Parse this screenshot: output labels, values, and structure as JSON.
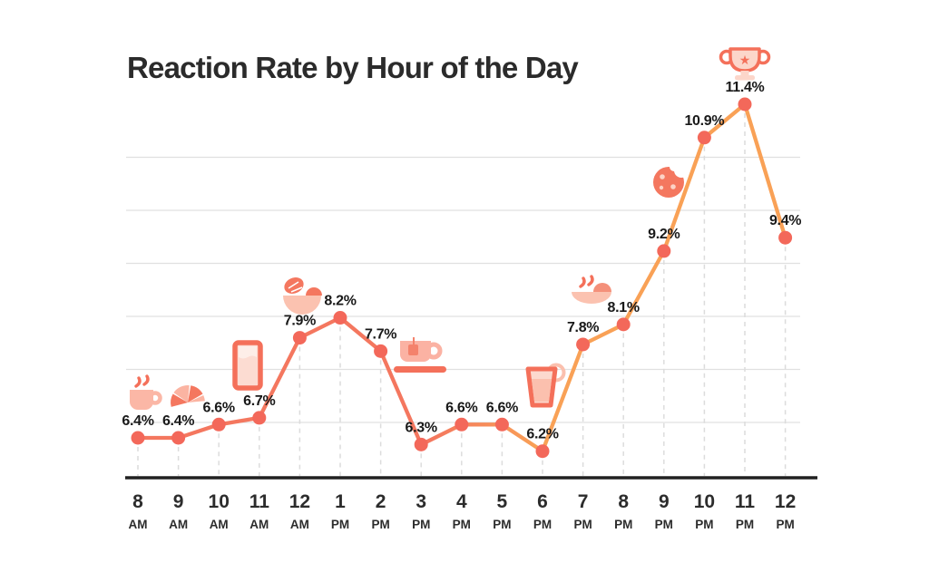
{
  "title": "Reaction Rate by Hour of the Day",
  "chart_data": {
    "type": "line",
    "title": "Reaction Rate by Hour of the Day",
    "categories": [
      "8 AM",
      "9 AM",
      "10 AM",
      "11 AM",
      "12 AM",
      "1 PM",
      "2 PM",
      "3 PM",
      "4 PM",
      "5 PM",
      "6 PM",
      "7 PM",
      "8 PM",
      "9 PM",
      "10 PM",
      "11 PM",
      "12 PM"
    ],
    "series": [
      {
        "name": "Reaction rate",
        "values": [
          6.4,
          6.4,
          6.6,
          6.7,
          7.9,
          8.2,
          7.7,
          6.3,
          6.6,
          6.6,
          6.2,
          7.8,
          8.1,
          9.2,
          10.9,
          11.4,
          9.4
        ]
      }
    ],
    "data_labels": [
      "6.4%",
      "6.4%",
      "6.6%",
      "6.7%",
      "7.9%",
      "8.2%",
      "7.7%",
      "6.3%",
      "6.6%",
      "6.6%",
      "6.2%",
      "7.8%",
      "8.1%",
      "9.2%",
      "10.9%",
      "11.4%",
      "9.4%"
    ],
    "unit": "%",
    "ylim": [
      5.9,
      12.1
    ],
    "y_axis": "hidden",
    "grid": "horizontal-light",
    "legend": "none",
    "annotations": [
      {
        "icon": "coffee-mug-icon",
        "near": "8 AM"
      },
      {
        "icon": "croissant-icon",
        "near": "9 AM"
      },
      {
        "icon": "juice-glass-icon",
        "near": "11 AM"
      },
      {
        "icon": "salad-bowl-icon",
        "near": "12 AM"
      },
      {
        "icon": "tea-cup-icon",
        "near": "3 PM"
      },
      {
        "icon": "soft-drink-icon",
        "near": "6 PM"
      },
      {
        "icon": "noodle-bowl-icon",
        "near": "7 PM"
      },
      {
        "icon": "cookie-icon",
        "near": "9 PM"
      },
      {
        "icon": "trophy-icon",
        "near": "11 PM"
      }
    ]
  },
  "colors": {
    "line_start": "#f4775f",
    "line_end": "#f9a156",
    "dot": "#f3685a",
    "icon_dark": "#f4705a",
    "icon_mid": "#f4775f",
    "icon_light": "#fbb7a6",
    "icon_pale": "#fcdcd2",
    "grid": "#e0e0e0",
    "dash": "#dcdcdc",
    "axis": "#212121",
    "label_text": "#191919",
    "tick_text": "#2c2c2c",
    "title_text": "#2b2b2b"
  }
}
